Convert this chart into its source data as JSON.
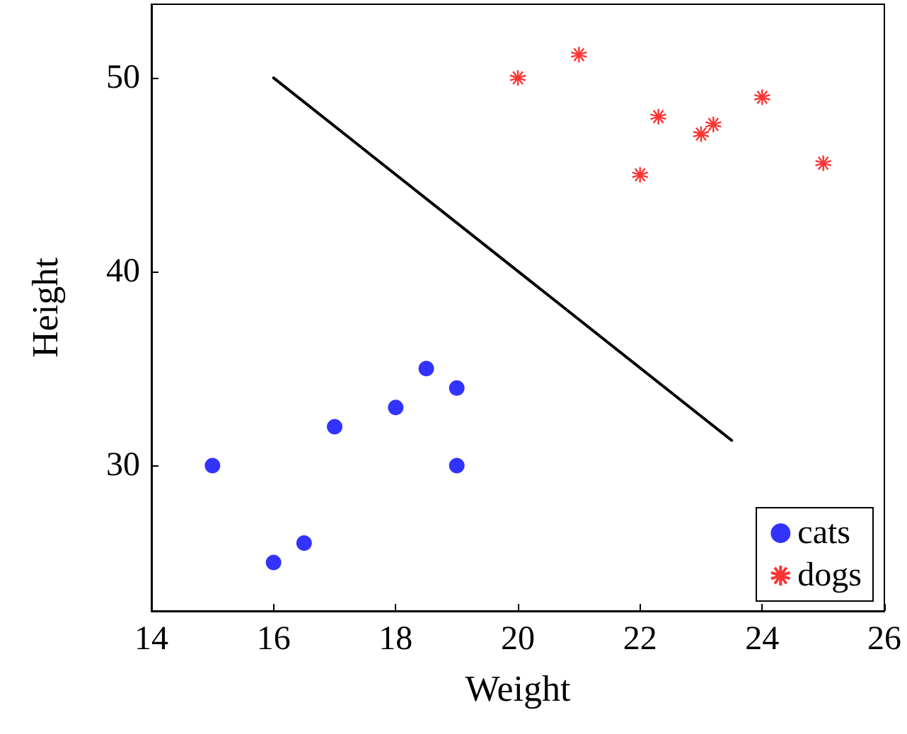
{
  "chart_data": {
    "type": "scatter",
    "xlabel": "Weight",
    "ylabel": "Height",
    "xlim": [
      14,
      26
    ],
    "xticks": [
      14,
      16,
      18,
      20,
      22,
      24,
      26
    ],
    "ylim": [
      22.5,
      53.8
    ],
    "yticks": [
      30,
      40,
      50
    ],
    "grid": false,
    "legend": "bottom right",
    "series": [
      {
        "name": "cats",
        "color": "#0000ff",
        "marker": "circle",
        "x": [
          15,
          16,
          16.5,
          17,
          18,
          18.5,
          19,
          19
        ],
        "values": [
          30,
          25,
          26,
          32,
          33,
          35,
          34,
          30
        ]
      },
      {
        "name": "dogs",
        "color": "#ff0000",
        "marker": "cross",
        "x": [
          20,
          21,
          22,
          22.3,
          23,
          23.2,
          24,
          25
        ],
        "values": [
          50,
          51.2,
          45,
          48,
          47.1,
          47.6,
          49,
          45.6
        ]
      },
      {
        "type": "line",
        "color": "#000000",
        "marker": "none",
        "line_style": "solid",
        "x": [
          16,
          23.5
        ],
        "values": [
          50,
          31.3
        ]
      }
    ]
  }
}
